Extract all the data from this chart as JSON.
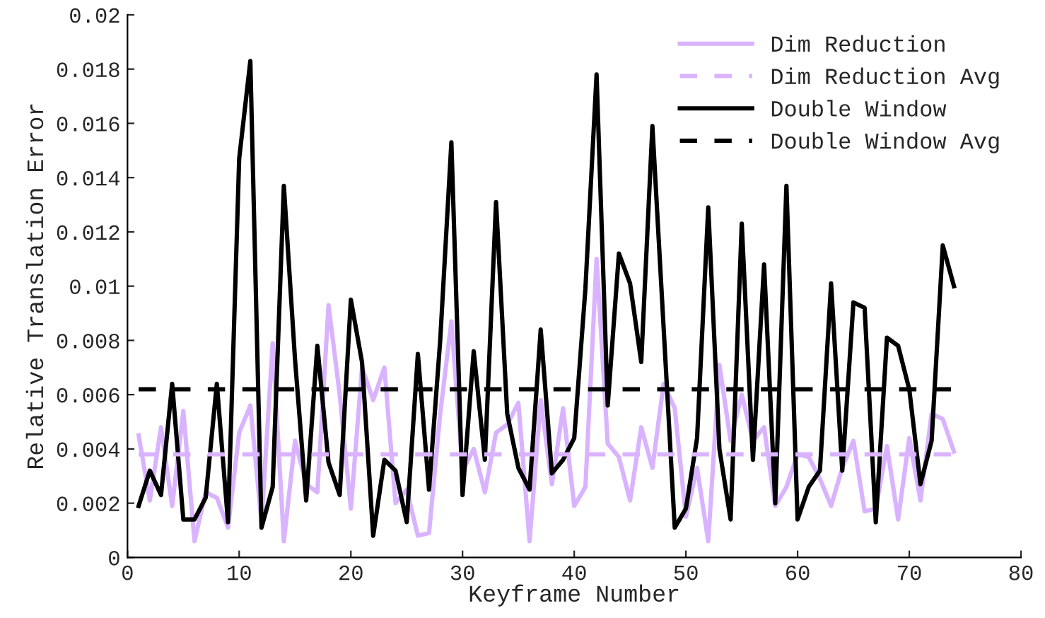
{
  "chart_data": {
    "type": "line",
    "xlabel": "Keyframe Number",
    "ylabel": "Relative Translation Error",
    "x": [
      1,
      2,
      3,
      4,
      5,
      6,
      7,
      8,
      9,
      10,
      11,
      12,
      13,
      14,
      15,
      16,
      17,
      18,
      19,
      20,
      21,
      22,
      23,
      24,
      25,
      26,
      27,
      28,
      29,
      30,
      31,
      32,
      33,
      34,
      35,
      36,
      37,
      38,
      39,
      40,
      41,
      42,
      43,
      44,
      45,
      46,
      47,
      48,
      49,
      50,
      51,
      52,
      53,
      54,
      55,
      56,
      57,
      58,
      59,
      60,
      61,
      62,
      63,
      64,
      65,
      66,
      67,
      68,
      69,
      70,
      71,
      72,
      73,
      74
    ],
    "series": [
      {
        "name": "Dim Reduction",
        "color": "#d9b3ff",
        "line_style": "solid",
        "values": [
          0.0045,
          0.0021,
          0.0048,
          0.0019,
          0.0054,
          0.0006,
          0.0024,
          0.0022,
          0.0011,
          0.0046,
          0.0056,
          0.0013,
          0.0079,
          0.0006,
          0.0043,
          0.0027,
          0.0024,
          0.0093,
          0.006,
          0.0018,
          0.007,
          0.0058,
          0.007,
          0.002,
          0.0025,
          0.0008,
          0.0009,
          0.0053,
          0.0087,
          0.0032,
          0.004,
          0.0024,
          0.0046,
          0.0049,
          0.0057,
          0.0006,
          0.0058,
          0.0027,
          0.0055,
          0.0019,
          0.0026,
          0.011,
          0.0042,
          0.0037,
          0.0021,
          0.0048,
          0.0033,
          0.0064,
          0.0055,
          0.0015,
          0.0033,
          0.0006,
          0.0071,
          0.0043,
          0.006,
          0.0043,
          0.0048,
          0.0019,
          0.0026,
          0.0038,
          0.0037,
          0.0029,
          0.0019,
          0.0033,
          0.0043,
          0.0017,
          0.0018,
          0.0041,
          0.0014,
          0.0044,
          0.0021,
          0.0053,
          0.0051,
          0.0039
        ]
      },
      {
        "name": "Double Window",
        "color": "#000000",
        "line_style": "solid",
        "values": [
          0.0019,
          0.0032,
          0.0023,
          0.0064,
          0.0014,
          0.0014,
          0.0022,
          0.0064,
          0.0013,
          0.0147,
          0.0183,
          0.0011,
          0.0026,
          0.0137,
          0.0073,
          0.0021,
          0.0078,
          0.0035,
          0.0023,
          0.0095,
          0.0072,
          0.0008,
          0.0036,
          0.0032,
          0.0013,
          0.0075,
          0.0025,
          0.008,
          0.0153,
          0.0023,
          0.0076,
          0.0036,
          0.0131,
          0.0053,
          0.0033,
          0.0025,
          0.0084,
          0.0031,
          0.0036,
          0.0044,
          0.0099,
          0.0178,
          0.0056,
          0.0112,
          0.0101,
          0.0072,
          0.0159,
          0.0085,
          0.0011,
          0.0018,
          0.0044,
          0.0129,
          0.004,
          0.0014,
          0.0123,
          0.0036,
          0.0108,
          0.002,
          0.0137,
          0.0014,
          0.0026,
          0.0032,
          0.0101,
          0.0032,
          0.0094,
          0.0092,
          0.0013,
          0.0081,
          0.0078,
          0.0062,
          0.0027,
          0.0043,
          0.0115,
          0.01
        ]
      }
    ],
    "ref_lines": [
      {
        "axis": "y",
        "value": 0.0038,
        "label": "Dim Reduction Avg",
        "color": "#d9b3ff",
        "line_style": "dashed"
      },
      {
        "axis": "y",
        "value": 0.0062,
        "label": "Double Window Avg",
        "color": "#000000",
        "line_style": "dashed"
      }
    ],
    "xlim": [
      0,
      80
    ],
    "xticks": [
      0,
      10,
      20,
      30,
      40,
      50,
      60,
      70,
      80
    ],
    "ylim": [
      0,
      0.02
    ],
    "yticks": [
      0,
      0.002,
      0.004,
      0.006,
      0.008,
      0.01,
      0.012,
      0.014,
      0.016,
      0.018,
      0.02
    ],
    "grid": false,
    "legend": "top right",
    "marker": "none"
  }
}
